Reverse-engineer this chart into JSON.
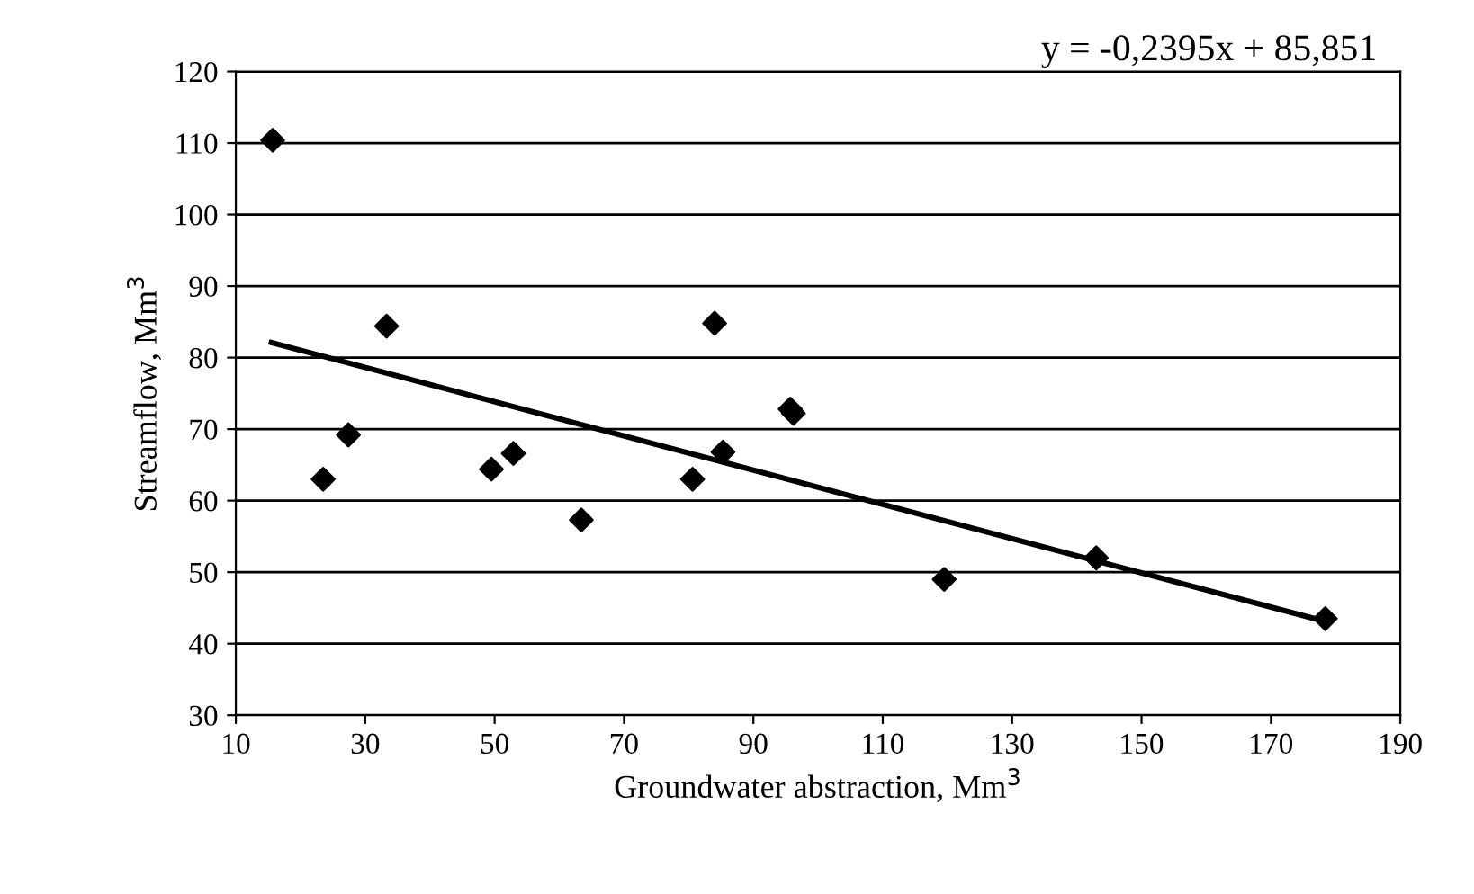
{
  "chart_data": {
    "type": "scatter",
    "xlabel": "Groundwater abstraction, Mm$^{3}$",
    "ylabel": "Streamflow, Mm$^{3}$",
    "annotations": [
      "y = -0,2395x + 85,851"
    ],
    "series": [
      {
        "color": "#000000",
        "marker": "diamond",
        "x": [
          15.7,
          23.5,
          27.4,
          33.3,
          49.5,
          52.9,
          63.4,
          80.6,
          84.0,
          85.3,
          95.7,
          96.2,
          119.5,
          143.0,
          178.4
        ],
        "values": [
          110.4,
          63.0,
          69.2,
          84.4,
          64.4,
          66.6,
          57.3,
          63.0,
          84.8,
          66.8,
          72.8,
          72.2,
          49.0,
          52.0,
          43.5
        ]
      },
      {
        "type": "line",
        "color": "#000000",
        "marker": "none",
        "x": [
          15.5,
          178.4
        ],
        "values": [
          82.1,
          43.1
        ]
      }
    ],
    "xlim": [
      10,
      190
    ],
    "xticks": [
      10,
      30,
      50,
      70,
      90,
      110,
      130,
      150,
      170,
      190
    ],
    "ylim": [
      30,
      120
    ],
    "yticks": [
      30,
      40,
      50,
      60,
      70,
      80,
      90,
      100,
      110,
      120
    ],
    "grid": "y",
    "legend": false
  }
}
